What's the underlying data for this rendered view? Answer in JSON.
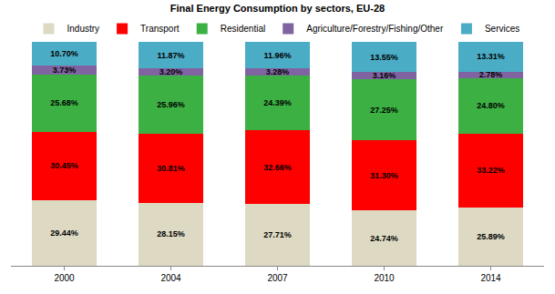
{
  "chart_data": {
    "type": "bar",
    "title": "Final Energy Consumption by sectors, EU-28",
    "categories": [
      "2000",
      "2004",
      "2007",
      "2010",
      "2014"
    ],
    "stacked": true,
    "data_labels": true,
    "tick_labels": "x",
    "legend": "top",
    "grid": false,
    "ylim": [
      0,
      100
    ],
    "series": [
      {
        "name": "Industry",
        "color": "#ddd9c3",
        "values": [
          29.44,
          28.15,
          27.71,
          24.74,
          25.89
        ],
        "value_labels": [
          "29.44%",
          "28.15%",
          "27.71%",
          "24.74%",
          "25.89%"
        ]
      },
      {
        "name": "Transport",
        "color": "#ff0000",
        "values": [
          30.45,
          30.81,
          32.66,
          31.3,
          33.22
        ],
        "value_labels": [
          "30.45%",
          "30.81%",
          "32.66%",
          "31.30%",
          "33.22%"
        ]
      },
      {
        "name": "Residential",
        "color": "#3cb043",
        "values": [
          25.68,
          25.96,
          24.39,
          27.25,
          24.8
        ],
        "value_labels": [
          "25.68%",
          "25.96%",
          "24.39%",
          "27.25%",
          "24.80%"
        ]
      },
      {
        "name": "Agriculture/Forestry/Fishing/Other",
        "color": "#8064a2",
        "values": [
          3.73,
          3.2,
          3.28,
          3.16,
          2.78
        ],
        "value_labels": [
          "3.73%",
          "3.20%",
          "3.28%",
          "3.16%",
          "2.78%"
        ]
      },
      {
        "name": "Services",
        "color": "#4bacc6",
        "values": [
          10.7,
          11.87,
          11.96,
          13.55,
          13.31
        ],
        "value_labels": [
          "10.70%",
          "11.87%",
          "11.96%",
          "13.55%",
          "13.31%"
        ]
      }
    ]
  }
}
